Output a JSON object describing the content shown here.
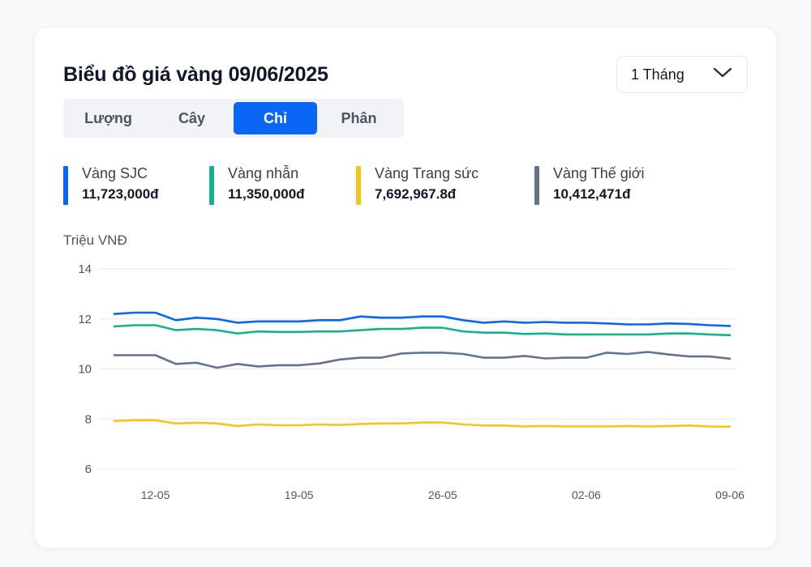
{
  "header": {
    "title": "Biểu đồ giá vàng 09/06/2025",
    "range_select": {
      "value": "1 Tháng",
      "icon": "chevron-down-icon"
    }
  },
  "tabs": [
    {
      "label": "Lượng",
      "active": false
    },
    {
      "label": "Cây",
      "active": false
    },
    {
      "label": "Chỉ",
      "active": true
    },
    {
      "label": "Phân",
      "active": false
    }
  ],
  "legend": [
    {
      "name": "Vàng SJC",
      "value": "11,723,000đ",
      "color": "#0a66f5"
    },
    {
      "name": "Vàng nhẫn",
      "value": "11,350,000đ",
      "color": "#16b38a"
    },
    {
      "name": "Vàng Trang sức",
      "value": "7,692,967.8đ",
      "color": "#f5c518"
    },
    {
      "name": "Vàng Thế giới",
      "value": "10,412,471đ",
      "color": "#64748b"
    }
  ],
  "chart_data": {
    "type": "line",
    "ylabel": "Triệu VNĐ",
    "ylim": [
      6,
      14
    ],
    "yticks": [
      14,
      12,
      10,
      8,
      6
    ],
    "grid": true,
    "x": [
      "10-05",
      "11-05",
      "12-05",
      "13-05",
      "14-05",
      "15-05",
      "16-05",
      "17-05",
      "18-05",
      "19-05",
      "20-05",
      "21-05",
      "22-05",
      "23-05",
      "24-05",
      "25-05",
      "26-05",
      "27-05",
      "28-05",
      "29-05",
      "30-05",
      "31-05",
      "01-06",
      "02-06",
      "03-06",
      "04-06",
      "05-06",
      "06-06",
      "07-06",
      "08-06",
      "09-06"
    ],
    "xtick_labels": [
      "12-05",
      "19-05",
      "26-05",
      "02-06",
      "09-06"
    ],
    "series": [
      {
        "name": "Vàng SJC",
        "color": "#0a66f5",
        "values": [
          12.2,
          12.25,
          12.25,
          11.95,
          12.05,
          12.0,
          11.85,
          11.9,
          11.9,
          11.9,
          11.95,
          11.95,
          12.1,
          12.05,
          12.05,
          12.1,
          12.1,
          11.95,
          11.85,
          11.9,
          11.85,
          11.88,
          11.85,
          11.85,
          11.82,
          11.78,
          11.78,
          11.82,
          11.8,
          11.75,
          11.72
        ]
      },
      {
        "name": "Vàng nhẫn",
        "color": "#16b38a",
        "values": [
          11.7,
          11.75,
          11.75,
          11.55,
          11.6,
          11.55,
          11.42,
          11.5,
          11.48,
          11.48,
          11.5,
          11.5,
          11.55,
          11.6,
          11.6,
          11.65,
          11.65,
          11.5,
          11.45,
          11.45,
          11.4,
          11.42,
          11.38,
          11.38,
          11.38,
          11.38,
          11.38,
          11.42,
          11.42,
          11.38,
          11.35
        ]
      },
      {
        "name": "Vàng Trang sức",
        "color": "#f5c518",
        "values": [
          7.92,
          7.95,
          7.95,
          7.82,
          7.85,
          7.82,
          7.72,
          7.78,
          7.75,
          7.75,
          7.78,
          7.76,
          7.8,
          7.82,
          7.82,
          7.86,
          7.86,
          7.78,
          7.74,
          7.74,
          7.7,
          7.72,
          7.7,
          7.7,
          7.7,
          7.72,
          7.7,
          7.72,
          7.74,
          7.7,
          7.69
        ]
      },
      {
        "name": "Vàng Thế giới",
        "color": "#64748b",
        "values": [
          10.55,
          10.55,
          10.55,
          10.2,
          10.25,
          10.05,
          10.2,
          10.1,
          10.15,
          10.15,
          10.22,
          10.38,
          10.45,
          10.45,
          10.62,
          10.65,
          10.65,
          10.6,
          10.45,
          10.45,
          10.52,
          10.42,
          10.45,
          10.45,
          10.65,
          10.6,
          10.68,
          10.58,
          10.5,
          10.5,
          10.41
        ]
      }
    ]
  }
}
